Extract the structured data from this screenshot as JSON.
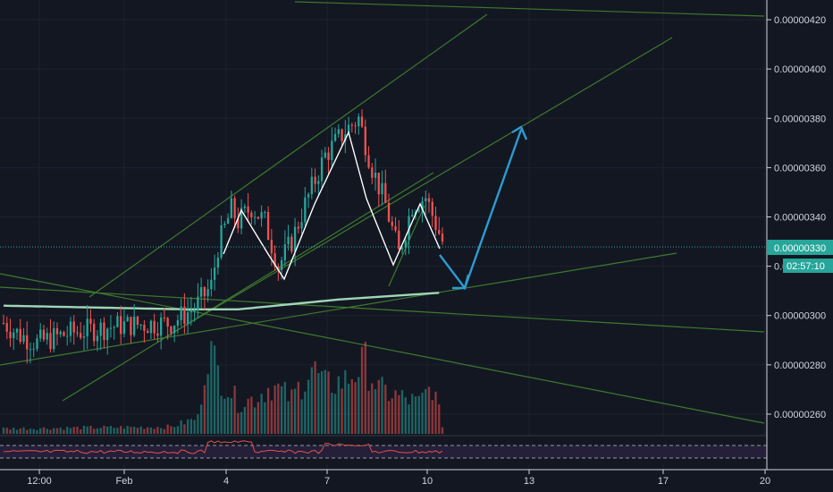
{
  "chart_data": {
    "type": "candlestick",
    "ylim": [
      2.52e-06,
      4.28e-06
    ],
    "y_ticks": [
      {
        "value": 4.2e-06,
        "label": "0.00000420"
      },
      {
        "value": 4e-06,
        "label": "0.00000400"
      },
      {
        "value": 3.8e-06,
        "label": "0.00000380"
      },
      {
        "value": 3.6e-06,
        "label": "0.00000360"
      },
      {
        "value": 3.4e-06,
        "label": "0.00000340"
      },
      {
        "value": 3.2e-06,
        "label": "0.00000320"
      },
      {
        "value": 3e-06,
        "label": "0.00000300"
      },
      {
        "value": 2.8e-06,
        "label": "0.00000280"
      },
      {
        "value": 2.6e-06,
        "label": "0.00000260"
      }
    ],
    "x_ticks": [
      "12:00",
      "Feb",
      "4",
      "7",
      "10",
      "13",
      "17",
      "20"
    ],
    "last_price": {
      "value": 3.3e-06,
      "label": "0.00000330",
      "countdown": "02:57:10"
    },
    "colors": {
      "up": "#26a69a",
      "down": "#ef5350",
      "trend": "#3d7a2e",
      "arrow": "#2d9bd1",
      "ma": "#9fd6b4",
      "pattern": "#ffffff",
      "rsi": "#e05252",
      "bg": "#131722",
      "grid": "#1e2230"
    },
    "n_bars": 132,
    "candles_key_path": [
      [
        0,
        2.97e-06
      ],
      [
        5,
        2.92e-06
      ],
      [
        10,
        2.89e-06
      ],
      [
        20,
        2.93e-06
      ],
      [
        35,
        2.96e-06
      ],
      [
        50,
        2.97e-06
      ],
      [
        57,
        3.03e-06
      ],
      [
        62,
        3.12e-06
      ],
      [
        64,
        3.28e-06
      ],
      [
        68,
        3.43e-06
      ],
      [
        70,
        3.38e-06
      ],
      [
        74,
        3.44e-06
      ],
      [
        78,
        3.38e-06
      ],
      [
        82,
        3.2e-06
      ],
      [
        86,
        3.3e-06
      ],
      [
        90,
        3.45e-06
      ],
      [
        96,
        3.65e-06
      ],
      [
        102,
        3.75e-06
      ],
      [
        106,
        3.8e-06
      ],
      [
        110,
        3.6e-06
      ],
      [
        114,
        3.45e-06
      ],
      [
        118,
        3.25e-06
      ],
      [
        122,
        3.45e-06
      ],
      [
        126,
        3.48e-06
      ],
      [
        131,
        3.3e-06
      ]
    ],
    "volume_key_path": [
      [
        0,
        0.06
      ],
      [
        50,
        0.08
      ],
      [
        58,
        0.18
      ],
      [
        61,
        1.0
      ],
      [
        64,
        0.7
      ],
      [
        70,
        0.35
      ],
      [
        75,
        0.4
      ],
      [
        80,
        0.55
      ],
      [
        86,
        0.4
      ],
      [
        92,
        0.75
      ],
      [
        96,
        0.55
      ],
      [
        102,
        0.6
      ],
      [
        108,
        0.8
      ],
      [
        112,
        0.5
      ],
      [
        118,
        0.42
      ],
      [
        124,
        0.35
      ],
      [
        128,
        0.55
      ],
      [
        131,
        0.1
      ]
    ],
    "ma_path": [
      [
        0,
        3.04e-06
      ],
      [
        55,
        3.025e-06
      ],
      [
        70,
        3.025e-06
      ],
      [
        100,
        3.065e-06
      ],
      [
        131,
        3.093e-06
      ]
    ],
    "grid": true
  }
}
